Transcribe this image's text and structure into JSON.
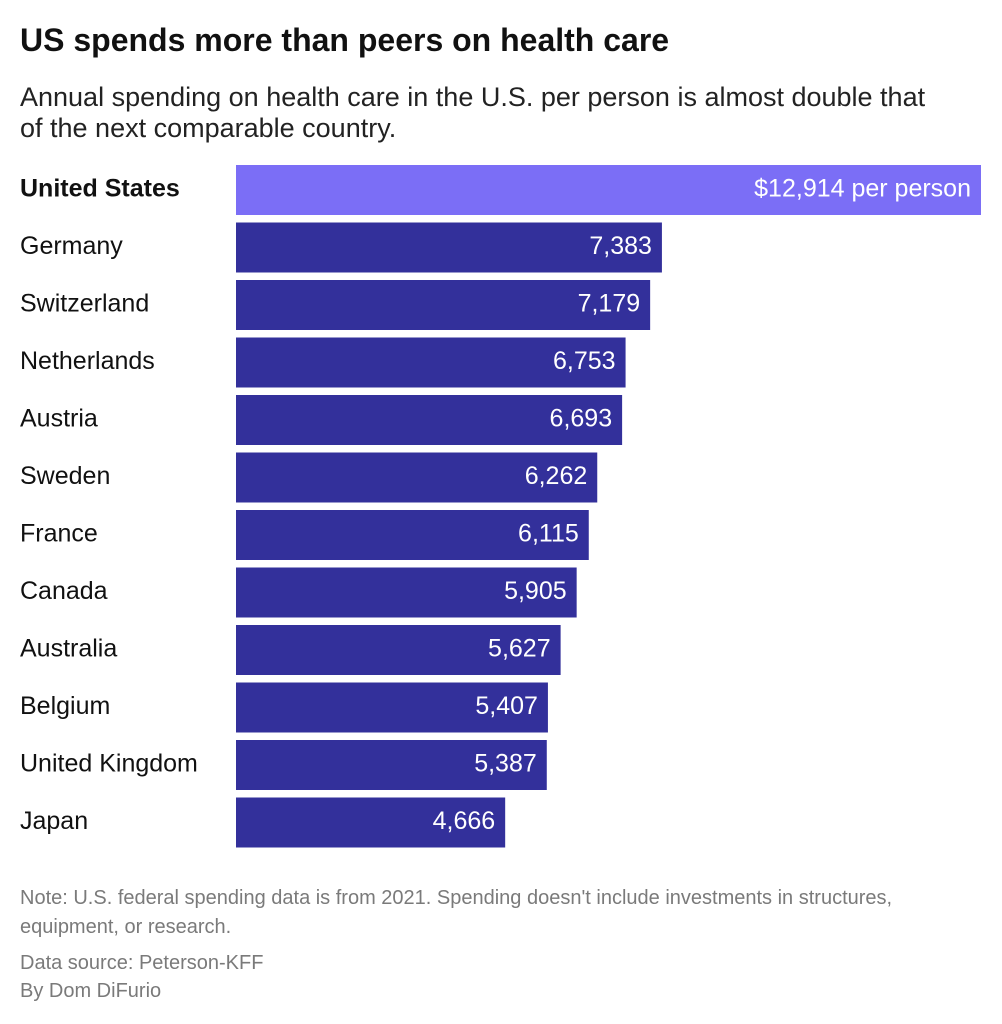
{
  "chart_data": {
    "type": "bar",
    "orientation": "horizontal",
    "title": "US spends more than peers on health care",
    "subtitle": "Annual spending on health care in the U.S. per person is almost double that of the next comparable country.",
    "categories": [
      "United States",
      "Germany",
      "Switzerland",
      "Netherlands",
      "Austria",
      "Sweden",
      "France",
      "Canada",
      "Australia",
      "Belgium",
      "United Kingdom",
      "Japan"
    ],
    "values": [
      12914,
      7383,
      7179,
      6753,
      6693,
      6262,
      6115,
      5905,
      5627,
      5407,
      5387,
      4666
    ],
    "value_labels": [
      "$12,914 per person",
      "7,383",
      "7,179",
      "6,753",
      "6,693",
      "6,262",
      "6,115",
      "5,905",
      "5,627",
      "5,407",
      "5,387",
      "4,666"
    ],
    "colors": [
      "#7b6ef6",
      "#33309b",
      "#33309b",
      "#33309b",
      "#33309b",
      "#33309b",
      "#33309b",
      "#33309b",
      "#33309b",
      "#33309b",
      "#33309b",
      "#33309b"
    ],
    "note": "Note: U.S. federal spending data is from 2021. Spending doesn't include investments in structures, equipment, or research.",
    "source": "Data source: Peterson-KFF",
    "byline": "By Dom DiFurio"
  }
}
